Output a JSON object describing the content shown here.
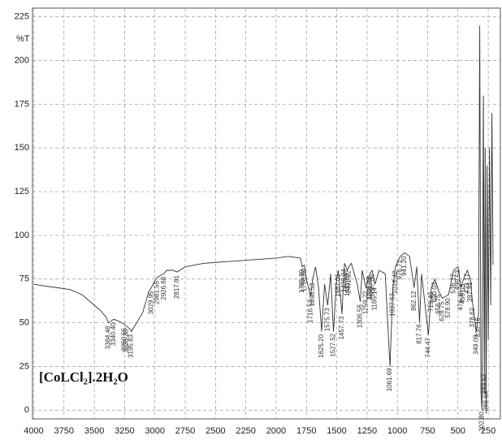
{
  "chart_data": {
    "type": "line",
    "y_label": "%T",
    "sample_label": "[CoLCl₂].2H₂O",
    "xlim": [
      4010,
      150
    ],
    "ylim": [
      -5,
      230
    ],
    "xticks": [
      4000,
      3750,
      3500,
      3250,
      3000,
      2750,
      2500,
      2250,
      2000,
      1750,
      1500,
      1250,
      1000,
      750,
      500,
      250
    ],
    "yticks": [
      0,
      25,
      50,
      75,
      100,
      125,
      150,
      175,
      200,
      225
    ],
    "grid": true,
    "series": [
      {
        "color": "#333333",
        "x": [
          4000,
          3900,
          3800,
          3700,
          3600,
          3500,
          3450,
          3400,
          3384,
          3340,
          3300,
          3250,
          3200,
          3195,
          3150,
          3100,
          3050,
          3030,
          3000,
          2980,
          2930,
          2900,
          2850,
          2817,
          2750,
          2600,
          2400,
          2200,
          2000,
          1900,
          1800,
          1785,
          1768,
          1750,
          1716,
          1698,
          1675,
          1650,
          1625,
          1600,
          1575,
          1550,
          1527,
          1500,
          1487,
          1457,
          1436,
          1411,
          1400,
          1380,
          1330,
          1306,
          1290,
          1259,
          1228,
          1208,
          1185,
          1150,
          1100,
          1061,
          1037,
          1016,
          976,
          941,
          900,
          862,
          840,
          817,
          800,
          744,
          719,
          690,
          658,
          628,
          578,
          536,
          499,
          476,
          459,
          423,
          397,
          378,
          349,
          330,
          320,
          310,
          302,
          290,
          283,
          275,
          268,
          260,
          250,
          240,
          230,
          220,
          210
        ],
        "values": [
          72,
          71,
          70,
          69,
          66,
          60,
          57,
          53,
          50,
          52,
          51,
          49,
          46,
          45,
          50,
          56,
          68,
          70,
          74,
          76,
          78,
          80,
          80,
          79,
          82,
          84,
          85,
          86,
          87,
          88,
          87,
          82,
          83,
          75,
          65,
          75,
          82,
          70,
          45,
          72,
          60,
          78,
          45,
          75,
          80,
          55,
          84,
          80,
          82,
          84,
          72,
          62,
          80,
          70,
          78,
          80,
          72,
          80,
          78,
          25,
          70,
          82,
          88,
          90,
          88,
          70,
          82,
          50,
          78,
          43,
          70,
          75,
          68,
          64,
          66,
          80,
          82,
          70,
          74,
          80,
          75,
          60,
          45,
          55,
          220,
          10,
          0,
          180,
          10,
          150,
          -2,
          140,
          40,
          150,
          60,
          170,
          83
        ]
      }
    ],
    "annotations": [
      {
        "x": 3384.48,
        "label": "3384.48"
      },
      {
        "x": 3340.4,
        "label": "3340.40"
      },
      {
        "x": 3250.55,
        "label": "3250.55"
      },
      {
        "x": 3235.33,
        "label": "3235.33"
      },
      {
        "x": 3195.83,
        "label": "3195.83"
      },
      {
        "x": 3029.95,
        "label": "3029.95"
      },
      {
        "x": 2981.55,
        "label": "2981.55"
      },
      {
        "x": 2926.68,
        "label": "2926.68"
      },
      {
        "x": 2817.81,
        "label": "2817.81"
      },
      {
        "x": 1785.8,
        "label": "1785.80"
      },
      {
        "x": 1768.6,
        "label": "1768.60"
      },
      {
        "x": 1716.53,
        "label": "1716.53"
      },
      {
        "x": 1698.53,
        "label": "1698.53"
      },
      {
        "x": 1625.2,
        "label": "1625.20"
      },
      {
        "x": 1575.73,
        "label": "1575.73"
      },
      {
        "x": 1527.52,
        "label": "1527.52"
      },
      {
        "x": 1487.01,
        "label": "1487.01"
      },
      {
        "x": 1457.73,
        "label": "1457.73"
      },
      {
        "x": 1436.94,
        "label": "1436.94"
      },
      {
        "x": 1411.8,
        "label": "1411.80"
      },
      {
        "x": 1401.22,
        "label": "1401.22"
      },
      {
        "x": 1306.58,
        "label": "1306.58"
      },
      {
        "x": 1259.22,
        "label": "1259.22"
      },
      {
        "x": 1228.07,
        "label": "1228.07"
      },
      {
        "x": 1221.57,
        "label": "1221.57"
      },
      {
        "x": 1207.36,
        "label": "1207.36"
      },
      {
        "x": 1185.14,
        "label": "1185.14"
      },
      {
        "x": 1061.69,
        "label": "1061.69"
      },
      {
        "x": 1037.63,
        "label": "1037.63"
      },
      {
        "x": 1016.42,
        "label": "1016.42"
      },
      {
        "x": 976.71,
        "label": "976.71"
      },
      {
        "x": 941.2,
        "label": "941.20"
      },
      {
        "x": 862.12,
        "label": "862.12"
      },
      {
        "x": 817.76,
        "label": "817.76"
      },
      {
        "x": 744.47,
        "label": "744.47"
      },
      {
        "x": 719.4,
        "label": "719.40"
      },
      {
        "x": 690.03,
        "label": "690.03"
      },
      {
        "x": 658.75,
        "label": "658.75"
      },
      {
        "x": 628.75,
        "label": "628.75"
      },
      {
        "x": 578.9,
        "label": "578.90"
      },
      {
        "x": 536.17,
        "label": "536.17"
      },
      {
        "x": 499.53,
        "label": "499.53"
      },
      {
        "x": 476.38,
        "label": "476.38"
      },
      {
        "x": 459.03,
        "label": "459.03"
      },
      {
        "x": 423.17,
        "label": "423.17"
      },
      {
        "x": 397.31,
        "label": "397.31"
      },
      {
        "x": 378.62,
        "label": "378.62"
      },
      {
        "x": 349.09,
        "label": "349.09"
      },
      {
        "x": 330.16,
        "label": "330.16"
      },
      {
        "x": 302.8,
        "label": "302.80"
      },
      {
        "x": 283.52,
        "label": "283.52"
      },
      {
        "x": 268.68,
        "label": "268.68"
      }
    ]
  }
}
